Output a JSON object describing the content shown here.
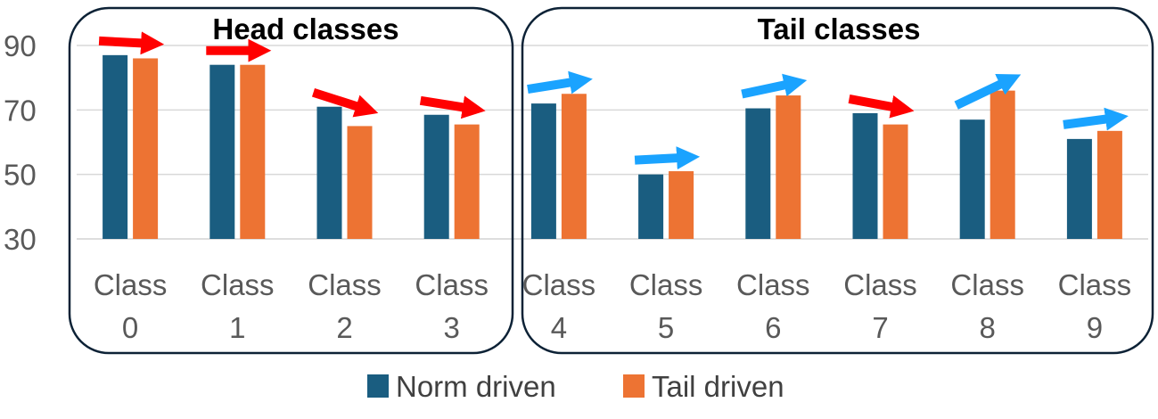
{
  "chart_data": {
    "type": "bar",
    "categories": [
      [
        "Class",
        "0"
      ],
      [
        "Class",
        "1"
      ],
      [
        "Class",
        "2"
      ],
      [
        "Class",
        "3"
      ],
      [
        "Class",
        "4"
      ],
      [
        "Class",
        "5"
      ],
      [
        "Class",
        "6"
      ],
      [
        "Class",
        "7"
      ],
      [
        "Class",
        "8"
      ],
      [
        "Class",
        "9"
      ]
    ],
    "series": [
      {
        "name": "Norm driven",
        "color": "#1a5d80",
        "values": [
          87,
          84,
          71,
          68.5,
          72,
          50,
          70.5,
          69,
          67,
          61
        ]
      },
      {
        "name": "Tail driven",
        "color": "#ed7333",
        "values": [
          86,
          84,
          65,
          65.5,
          75,
          51,
          74.5,
          65.5,
          76,
          63.5
        ]
      }
    ],
    "yticks": [
      30,
      50,
      70,
      90
    ],
    "ylim": [
      30,
      95
    ],
    "grid": true,
    "legend_position": "bottom",
    "groups": [
      {
        "label": "Head classes",
        "categories": [
          0,
          1,
          2,
          3
        ]
      },
      {
        "label": "Tail classes",
        "categories": [
          4,
          5,
          6,
          7,
          8,
          9
        ]
      }
    ],
    "annotations": {
      "description": "arrows from Norm driven bar top to Tail driven bar top; red = decrease, blue = increase",
      "arrows": [
        {
          "category": 0,
          "direction": "down",
          "color": "#ff0000"
        },
        {
          "category": 1,
          "direction": "down",
          "color": "#ff0000"
        },
        {
          "category": 2,
          "direction": "down",
          "color": "#ff0000"
        },
        {
          "category": 3,
          "direction": "down",
          "color": "#ff0000"
        },
        {
          "category": 4,
          "direction": "up",
          "color": "#1aa3ff"
        },
        {
          "category": 5,
          "direction": "up",
          "color": "#1aa3ff"
        },
        {
          "category": 6,
          "direction": "up",
          "color": "#1aa3ff"
        },
        {
          "category": 7,
          "direction": "down",
          "color": "#ff0000"
        },
        {
          "category": 8,
          "direction": "up",
          "color": "#1aa3ff"
        },
        {
          "category": 9,
          "direction": "up",
          "color": "#1aa3ff"
        }
      ]
    }
  }
}
